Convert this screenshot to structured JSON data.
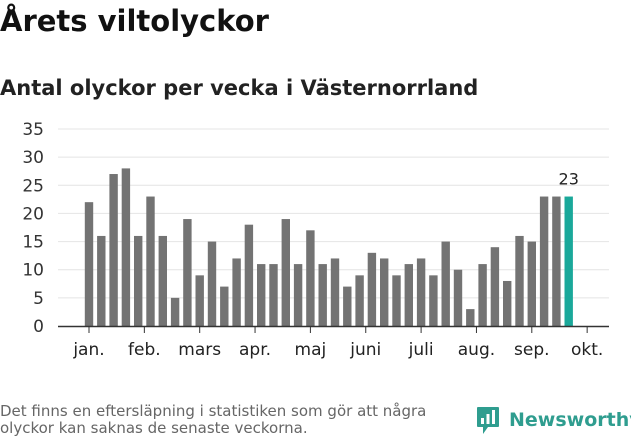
{
  "header": {
    "title": "Årets viltolyckor",
    "subtitle": "Antal olyckor per vecka i Västernorrland"
  },
  "chart_data": {
    "type": "bar",
    "title": "Årets viltolyckor",
    "subtitle": "Antal olyckor per vecka i Västernorrland",
    "xlabel": "",
    "ylabel": "",
    "ylim": [
      0,
      35
    ],
    "yticks": [
      0,
      5,
      10,
      15,
      20,
      25,
      30,
      35
    ],
    "grid": true,
    "values": [
      22,
      16,
      27,
      28,
      16,
      23,
      16,
      5,
      19,
      9,
      15,
      7,
      12,
      18,
      11,
      11,
      19,
      11,
      17,
      11,
      12,
      7,
      9,
      13,
      12,
      9,
      11,
      12,
      9,
      15,
      10,
      3,
      11,
      14,
      8,
      16,
      15,
      23,
      23,
      23
    ],
    "highlight_index": 39,
    "highlight_label": "23",
    "month_labels": [
      {
        "label": "jan.",
        "bar_index": 0
      },
      {
        "label": "feb.",
        "bar_index": 4.5
      },
      {
        "label": "mars",
        "bar_index": 9
      },
      {
        "label": "apr.",
        "bar_index": 13.5
      },
      {
        "label": "maj",
        "bar_index": 18
      },
      {
        "label": "juni",
        "bar_index": 22.5
      },
      {
        "label": "juli",
        "bar_index": 27
      },
      {
        "label": "aug.",
        "bar_index": 31.5
      },
      {
        "label": "sep.",
        "bar_index": 36
      },
      {
        "label": "okt.",
        "bar_index": 40.5
      }
    ],
    "colors": {
      "bar": "#737373",
      "highlight": "#1aa89a",
      "grid": "#e4e4e4",
      "axis": "#333333"
    }
  },
  "footer": {
    "note": "Det finns en eftersläpning i statistiken som gör att några olyckor kan saknas de senaste veckorna.",
    "brand": "Newsworthy",
    "brand_icon": "newsworthy-logo-icon",
    "brand_color": "#2f9d8f"
  }
}
